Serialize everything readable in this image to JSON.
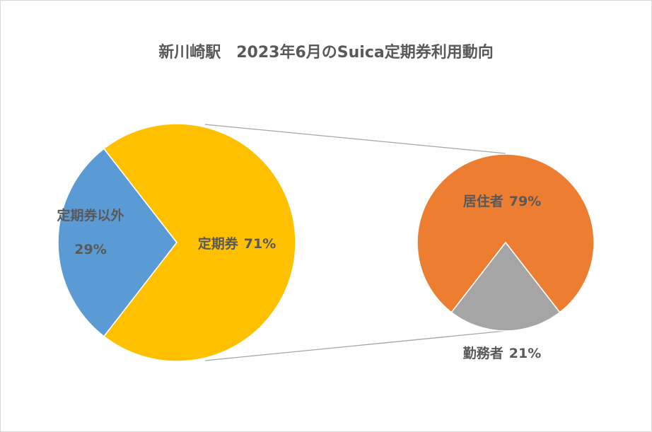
{
  "chart_data": [
    {
      "type": "pie",
      "title": "新川崎駅　2023年6月のSuica定期券利用動向",
      "categories": [
        "定期券以外",
        "定期券"
      ],
      "values": [
        29,
        71
      ],
      "value_labels": [
        "29%",
        "71%"
      ],
      "colors": [
        "#5b9bd5",
        "#ffc000"
      ]
    },
    {
      "type": "pie",
      "categories": [
        "居住者",
        "勤務者"
      ],
      "values": [
        79,
        21
      ],
      "value_labels": [
        "79%",
        "21%"
      ],
      "colors": [
        "#ed7d31",
        "#a5a5a5"
      ]
    }
  ]
}
